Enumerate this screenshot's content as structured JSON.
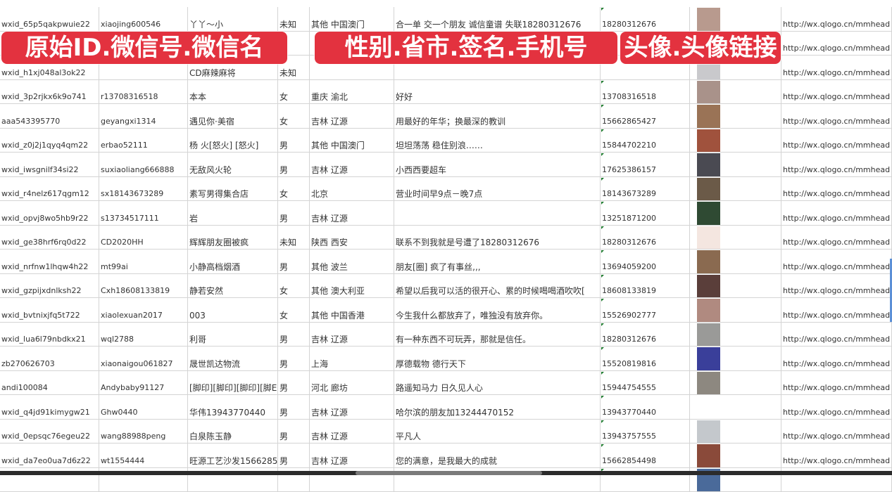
{
  "banners": [
    "原始ID.微信号.微信名",
    "性别.省市.签名.手机号",
    "头像.头像链接"
  ],
  "colors": {
    "banner": "#e3323f",
    "grid": "#d4d4d4",
    "cell_marker": "#1e7a2e"
  },
  "rows": [
    {
      "id": "wxid_65p5qakpwuie22",
      "wechat": "xiaojing600546",
      "name": "丫丫～小",
      "gender": "未知",
      "region": "其他 中国澳门",
      "signature": "合一单 交一个朋友 诚信童谱 失联18280312676",
      "phone": "18280312676",
      "avatar": "#b89a8e",
      "url": "http://wx.qlogo.cn/mmhead"
    },
    {
      "id": "",
      "wechat": "",
      "name": "",
      "gender": "",
      "region": "",
      "signature": "",
      "phone": "",
      "avatar": "#8b8fb0",
      "url": "http://wx.qlogo.cn/mmhead"
    },
    {
      "id": "wxid_h1xj048al3ok22",
      "wechat": "",
      "name": "CD麻辣麻将",
      "gender": "未知",
      "region": "",
      "signature": "",
      "phone": "",
      "avatar": "#c9c9cc",
      "url": "http://wx.qlogo.cn/mmhead"
    },
    {
      "id": "wxid_3p2rjkx6k9o741",
      "wechat": "r13708316518",
      "name": "本本",
      "gender": "女",
      "region": "重庆 渝北",
      "signature": "好好",
      "phone": "13708316518",
      "avatar": "#a9928a",
      "url": "http://wx.qlogo.cn/mmhead"
    },
    {
      "id": "aaa543395770",
      "wechat": "geyangxi1314",
      "name": "遇见你·美宿",
      "gender": "女",
      "region": "吉林 辽源",
      "signature": "用最好的年华；换最深的教训",
      "phone": "15662865427",
      "avatar": "#9a7356",
      "url": "http://wx.qlogo.cn/mmhead"
    },
    {
      "id": "wxid_z0j2j1qyq4qm22",
      "wechat": "erbao52111",
      "name": "杨 火[怒火] [怒火]",
      "gender": "男",
      "region": "其他 中国澳门",
      "signature": "坦坦荡荡 稳住别浪……",
      "phone": "15844702210",
      "avatar": "#a0523d",
      "url": "http://wx.qlogo.cn/mmhead"
    },
    {
      "id": "wxid_iwsgnilf34si22",
      "wechat": "suxiaoliang666888",
      "name": "无敌风火轮",
      "gender": "男",
      "region": "吉林 辽源",
      "signature": "小西西要超车",
      "phone": "17625386157",
      "avatar": "#4a4a52",
      "url": "http://wx.qlogo.cn/mmhead"
    },
    {
      "id": "wxid_r4nelz617qgm12",
      "wechat": "sx18143673289",
      "name": "素写男得集合店",
      "gender": "女",
      "region": "北京",
      "signature": "营业时间早9点－晚7点",
      "phone": "18143673289",
      "avatar": "#6b5a48",
      "url": "http://wx.qlogo.cn/mmhead"
    },
    {
      "id": "wxid_opvj8wo5hb9r22",
      "wechat": "s13734517111",
      "name": "岩",
      "gender": "男",
      "region": "吉林 辽源",
      "signature": "",
      "phone": "13251871200",
      "avatar": "#2f4a33",
      "url": "http://wx.qlogo.cn/mmhead"
    },
    {
      "id": "wxid_ge38hrf6rq0d22",
      "wechat": "CD2020HH",
      "name": "辉辉朋友圈被疯",
      "gender": "未知",
      "region": "陕西 西安",
      "signature": "联系不到我就是号遭了18280312676",
      "phone": "18280312676",
      "avatar": "#f4e6e0",
      "url": "http://wx.qlogo.cn/mmhead"
    },
    {
      "id": "wxid_nrfnw1lhqw4h22",
      "wechat": "mt99ai",
      "name": "小静高档烟酒",
      "gender": "男",
      "region": "其他 波兰",
      "signature": "朋友[圈] 疯了有事丝,,,",
      "phone": "13694059200",
      "avatar": "#8a6a50",
      "url": "http://wx.qlogo.cn/mmhead"
    },
    {
      "id": "wxid_gzpijxdnlksh22",
      "wechat": "Cxh18608133819",
      "name": "静若安然",
      "gender": "女",
      "region": "其他 澳大利亚",
      "signature": "希望以后我可以活的很开心、累的时候喝喝酒吹吹[",
      "phone": "18608133819",
      "avatar": "#5a3e3a",
      "url": "http://wx.qlogo.cn/mmhead"
    },
    {
      "id": "wxid_bvtnixjfq5t722",
      "wechat": "xiaolexuan2017",
      "name": "003",
      "gender": "女",
      "region": "其他 中国香港",
      "signature": "今生我什么都放弃了，唯独没有放弃你。",
      "phone": "15526902777",
      "avatar": "#b08a80",
      "url": "http://wx.qlogo.cn/mmhead"
    },
    {
      "id": "wxid_lua6l79nbdkx21",
      "wechat": "wql2788",
      "name": "利哥",
      "gender": "男",
      "region": "吉林 辽源",
      "signature": "有一种东西不可玩弄，那就是信任。",
      "phone": "18280312676",
      "avatar": "#9a9a98",
      "url": "http://wx.qlogo.cn/mmhead"
    },
    {
      "id": "zb270626703",
      "wechat": "xiaonaigou061827",
      "name": "晟世凯达物流",
      "gender": "男",
      "region": "上海",
      "signature": "厚德载物 德行天下",
      "phone": "15520819816",
      "avatar": "#3a3f9a",
      "url": "http://wx.qlogo.cn/mmhead"
    },
    {
      "id": "andi100084",
      "wechat": "Andybaby91127",
      "name": "[脚印][脚印][脚印][脚E",
      "gender": "男",
      "region": "河北 廊坊",
      "signature": "路遥知马力 日久见人心",
      "phone": "15944754555",
      "avatar": "#8d8880",
      "url": "http://wx.qlogo.cn/mmhead"
    },
    {
      "id": "wxid_q4jd91kimygw21",
      "wechat": "Ghw0440",
      "name": "华伟13943770440",
      "gender": "男",
      "region": "吉林 辽源",
      "signature": "哈尔滨的朋友加13244470152",
      "phone": "13943770440",
      "avatar": "#ffffff",
      "url": "http://wx.qlogo.cn/mmhead"
    },
    {
      "id": "wxid_0epsqc76egeu22",
      "wechat": "wang88988peng",
      "name": "白泉陈玉静",
      "gender": "男",
      "region": "吉林 辽源",
      "signature": "平凡人",
      "phone": "13943757555",
      "avatar": "#c4c8cc",
      "url": "http://wx.qlogo.cn/mmhead"
    },
    {
      "id": "wxid_da7eo0ua7d6z22",
      "wechat": "wt1554444",
      "name": "旺源工艺沙发15662854",
      "gender": "男",
      "region": "吉林 辽源",
      "signature": "您的满意，是我最大的成就",
      "phone": "15662854498",
      "avatar": "#8a4a3a",
      "url": "http://wx.qlogo.cn/mmhead"
    },
    {
      "id": "",
      "wechat": "",
      "name": "",
      "gender": "",
      "region": "",
      "signature": "",
      "phone": "",
      "avatar": "#4a6a9a",
      "url": ""
    }
  ]
}
